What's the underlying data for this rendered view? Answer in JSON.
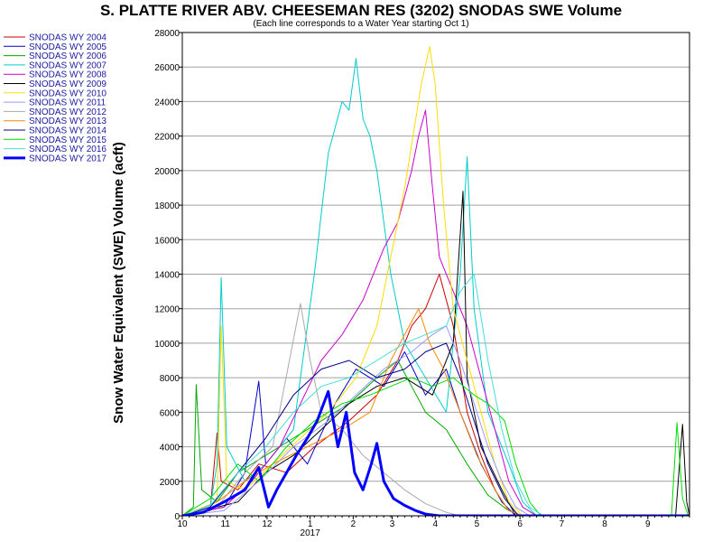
{
  "chart_data": {
    "type": "line",
    "title": "S. PLATTE RIVER ABV. CHEESEMAN RES (3202) SNODAS SWE Volume",
    "subtitle": "(Each line corresponds to a Water Year starting Oct 1)",
    "ylabel": "Snow Water Equivalent (SWE) Volume (acft)",
    "xlabel": "",
    "ylim": [
      0,
      28000
    ],
    "yticks": [
      0,
      2000,
      4000,
      6000,
      8000,
      10000,
      12000,
      14000,
      16000,
      18000,
      20000,
      22000,
      24000,
      26000,
      28000
    ],
    "xlim": [
      0,
      365
    ],
    "x_unit": "days since Oct 1",
    "xticks": [
      {
        "x": 0,
        "label": "10"
      },
      {
        "x": 31,
        "label": "11"
      },
      {
        "x": 61,
        "label": "12"
      },
      {
        "x": 92,
        "label": "1"
      },
      {
        "x": 123,
        "label": "2"
      },
      {
        "x": 151,
        "label": "3"
      },
      {
        "x": 182,
        "label": "4"
      },
      {
        "x": 212,
        "label": "5"
      },
      {
        "x": 243,
        "label": "6"
      },
      {
        "x": 273,
        "label": "7"
      },
      {
        "x": 304,
        "label": "8"
      },
      {
        "x": 335,
        "label": "9"
      }
    ],
    "year_label": {
      "x": 92,
      "label": "2017"
    },
    "grid": true,
    "legend_position": "left",
    "series": [
      {
        "name": "SNODAS WY 2004",
        "color": "#cc0000",
        "width": 1,
        "points": [
          [
            0,
            0
          ],
          [
            20,
            300
          ],
          [
            25,
            4800
          ],
          [
            28,
            2000
          ],
          [
            40,
            1500
          ],
          [
            55,
            3000
          ],
          [
            75,
            2500
          ],
          [
            95,
            4000
          ],
          [
            120,
            5500
          ],
          [
            140,
            7000
          ],
          [
            155,
            9000
          ],
          [
            165,
            11000
          ],
          [
            175,
            12000
          ],
          [
            185,
            14000
          ],
          [
            195,
            11000
          ],
          [
            205,
            6000
          ],
          [
            215,
            3500
          ],
          [
            225,
            1500
          ],
          [
            235,
            300
          ],
          [
            245,
            0
          ],
          [
            365,
            0
          ]
        ]
      },
      {
        "name": "SNODAS WY 2005",
        "color": "#0000cc",
        "width": 1,
        "points": [
          [
            0,
            0
          ],
          [
            30,
            500
          ],
          [
            45,
            2500
          ],
          [
            55,
            7800
          ],
          [
            60,
            3000
          ],
          [
            75,
            4500
          ],
          [
            90,
            3000
          ],
          [
            110,
            6500
          ],
          [
            125,
            8500
          ],
          [
            145,
            7500
          ],
          [
            160,
            9500
          ],
          [
            175,
            7000
          ],
          [
            190,
            8500
          ],
          [
            200,
            6000
          ],
          [
            215,
            3000
          ],
          [
            230,
            800
          ],
          [
            240,
            0
          ],
          [
            365,
            0
          ]
        ]
      },
      {
        "name": "SNODAS WY 2006",
        "color": "#00aa00",
        "width": 1,
        "points": [
          [
            0,
            0
          ],
          [
            8,
            500
          ],
          [
            10,
            7600
          ],
          [
            14,
            1500
          ],
          [
            25,
            800
          ],
          [
            40,
            2500
          ],
          [
            60,
            3500
          ],
          [
            80,
            4500
          ],
          [
            100,
            5500
          ],
          [
            120,
            6500
          ],
          [
            140,
            8000
          ],
          [
            155,
            9000
          ],
          [
            165,
            7500
          ],
          [
            175,
            6000
          ],
          [
            190,
            5000
          ],
          [
            205,
            3000
          ],
          [
            220,
            1200
          ],
          [
            235,
            300
          ],
          [
            245,
            0
          ],
          [
            365,
            0
          ]
        ]
      },
      {
        "name": "SNODAS WY 2007",
        "color": "#00cccc",
        "width": 1,
        "points": [
          [
            0,
            0
          ],
          [
            20,
            500
          ],
          [
            25,
            3000
          ],
          [
            28,
            13800
          ],
          [
            32,
            4000
          ],
          [
            45,
            2000
          ],
          [
            60,
            3000
          ],
          [
            80,
            5000
          ],
          [
            95,
            14000
          ],
          [
            105,
            21000
          ],
          [
            115,
            24000
          ],
          [
            120,
            23500
          ],
          [
            125,
            26500
          ],
          [
            130,
            23000
          ],
          [
            135,
            22000
          ],
          [
            140,
            20000
          ],
          [
            145,
            17000
          ],
          [
            150,
            14000
          ],
          [
            160,
            10000
          ],
          [
            175,
            8000
          ],
          [
            190,
            6000
          ],
          [
            200,
            14000
          ],
          [
            205,
            20800
          ],
          [
            210,
            12000
          ],
          [
            220,
            6000
          ],
          [
            235,
            3000
          ],
          [
            245,
            800
          ],
          [
            255,
            0
          ],
          [
            365,
            0
          ]
        ]
      },
      {
        "name": "SNODAS WY 2008",
        "color": "#cc00cc",
        "width": 1,
        "points": [
          [
            0,
            0
          ],
          [
            30,
            500
          ],
          [
            50,
            2000
          ],
          [
            70,
            4000
          ],
          [
            85,
            6500
          ],
          [
            100,
            9000
          ],
          [
            115,
            10500
          ],
          [
            130,
            12500
          ],
          [
            145,
            15500
          ],
          [
            155,
            17000
          ],
          [
            165,
            20000
          ],
          [
            170,
            22000
          ],
          [
            175,
            23500
          ],
          [
            180,
            19000
          ],
          [
            185,
            15000
          ],
          [
            195,
            13000
          ],
          [
            205,
            11000
          ],
          [
            215,
            8000
          ],
          [
            225,
            5000
          ],
          [
            235,
            2000
          ],
          [
            245,
            500
          ],
          [
            255,
            0
          ],
          [
            365,
            0
          ]
        ]
      },
      {
        "name": "SNODAS WY 2009",
        "color": "#000000",
        "width": 1,
        "points": [
          [
            0,
            0
          ],
          [
            40,
            800
          ],
          [
            60,
            2500
          ],
          [
            80,
            3500
          ],
          [
            100,
            5000
          ],
          [
            120,
            6500
          ],
          [
            140,
            7500
          ],
          [
            160,
            8000
          ],
          [
            180,
            7000
          ],
          [
            195,
            10000
          ],
          [
            202,
            18800
          ],
          [
            205,
            8000
          ],
          [
            215,
            4000
          ],
          [
            230,
            1500
          ],
          [
            240,
            0
          ],
          [
            355,
            0
          ],
          [
            360,
            5300
          ],
          [
            363,
            800
          ],
          [
            365,
            0
          ]
        ]
      },
      {
        "name": "SNODAS WY 2010",
        "color": "#ffdd00",
        "width": 1,
        "points": [
          [
            0,
            0
          ],
          [
            25,
            800
          ],
          [
            28,
            11000
          ],
          [
            32,
            2000
          ],
          [
            45,
            1500
          ],
          [
            65,
            3000
          ],
          [
            85,
            4500
          ],
          [
            105,
            6000
          ],
          [
            125,
            8000
          ],
          [
            140,
            11000
          ],
          [
            150,
            15000
          ],
          [
            160,
            19000
          ],
          [
            168,
            23000
          ],
          [
            172,
            25000
          ],
          [
            178,
            27200
          ],
          [
            182,
            25000
          ],
          [
            188,
            18000
          ],
          [
            195,
            12000
          ],
          [
            205,
            9000
          ],
          [
            215,
            6000
          ],
          [
            225,
            3000
          ],
          [
            235,
            800
          ],
          [
            245,
            0
          ],
          [
            365,
            0
          ]
        ]
      },
      {
        "name": "SNODAS WY 2011",
        "color": "#9999ff",
        "width": 1,
        "points": [
          [
            0,
            0
          ],
          [
            30,
            300
          ],
          [
            55,
            2000
          ],
          [
            80,
            4000
          ],
          [
            105,
            5500
          ],
          [
            125,
            7000
          ],
          [
            145,
            8500
          ],
          [
            165,
            9500
          ],
          [
            180,
            10500
          ],
          [
            190,
            11000
          ],
          [
            200,
            9000
          ],
          [
            210,
            6500
          ],
          [
            220,
            4000
          ],
          [
            230,
            2000
          ],
          [
            240,
            500
          ],
          [
            250,
            0
          ],
          [
            365,
            0
          ]
        ]
      },
      {
        "name": "SNODAS WY 2012",
        "color": "#aaaaaa",
        "width": 1,
        "points": [
          [
            0,
            0
          ],
          [
            25,
            500
          ],
          [
            45,
            2500
          ],
          [
            65,
            4000
          ],
          [
            85,
            12300
          ],
          [
            92,
            9000
          ],
          [
            100,
            6000
          ],
          [
            115,
            5000
          ],
          [
            130,
            3500
          ],
          [
            145,
            2500
          ],
          [
            160,
            1500
          ],
          [
            175,
            700
          ],
          [
            190,
            200
          ],
          [
            200,
            0
          ],
          [
            365,
            0
          ]
        ]
      },
      {
        "name": "SNODAS WY 2013",
        "color": "#ff8800",
        "width": 1,
        "points": [
          [
            0,
            0
          ],
          [
            25,
            800
          ],
          [
            45,
            2000
          ],
          [
            65,
            3000
          ],
          [
            90,
            4000
          ],
          [
            115,
            5000
          ],
          [
            135,
            6000
          ],
          [
            150,
            9000
          ],
          [
            160,
            10500
          ],
          [
            170,
            12000
          ],
          [
            178,
            10000
          ],
          [
            188,
            8500
          ],
          [
            200,
            6000
          ],
          [
            212,
            3500
          ],
          [
            225,
            1500
          ],
          [
            235,
            300
          ],
          [
            245,
            0
          ],
          [
            365,
            0
          ]
        ]
      },
      {
        "name": "SNODAS WY 2014",
        "color": "#000088",
        "width": 1,
        "points": [
          [
            0,
            0
          ],
          [
            20,
            500
          ],
          [
            40,
            2500
          ],
          [
            60,
            4500
          ],
          [
            80,
            7000
          ],
          [
            100,
            8500
          ],
          [
            120,
            9000
          ],
          [
            140,
            8000
          ],
          [
            160,
            8500
          ],
          [
            175,
            9500
          ],
          [
            190,
            10000
          ],
          [
            200,
            8000
          ],
          [
            210,
            5500
          ],
          [
            220,
            3000
          ],
          [
            232,
            1000
          ],
          [
            242,
            0
          ],
          [
            365,
            0
          ]
        ]
      },
      {
        "name": "SNODAS WY 2015",
        "color": "#00dd00",
        "width": 1,
        "points": [
          [
            0,
            0
          ],
          [
            20,
            1000
          ],
          [
            40,
            3000
          ],
          [
            55,
            2000
          ],
          [
            75,
            4000
          ],
          [
            95,
            5500
          ],
          [
            115,
            6500
          ],
          [
            135,
            7000
          ],
          [
            150,
            7500
          ],
          [
            165,
            8000
          ],
          [
            180,
            7500
          ],
          [
            195,
            8000
          ],
          [
            210,
            7000
          ],
          [
            220,
            6500
          ],
          [
            232,
            5500
          ],
          [
            240,
            3000
          ],
          [
            250,
            800
          ],
          [
            258,
            0
          ],
          [
            352,
            0
          ],
          [
            356,
            5400
          ],
          [
            360,
            1000
          ],
          [
            364,
            0
          ]
        ]
      },
      {
        "name": "SNODAS WY 2016",
        "color": "#44dddd",
        "width": 1,
        "points": [
          [
            0,
            0
          ],
          [
            20,
            600
          ],
          [
            40,
            2500
          ],
          [
            60,
            4000
          ],
          [
            80,
            6000
          ],
          [
            100,
            7500
          ],
          [
            120,
            8000
          ],
          [
            140,
            9000
          ],
          [
            160,
            10000
          ],
          [
            175,
            10500
          ],
          [
            190,
            11000
          ],
          [
            200,
            13000
          ],
          [
            210,
            14000
          ],
          [
            220,
            9000
          ],
          [
            230,
            5000
          ],
          [
            240,
            2000
          ],
          [
            250,
            500
          ],
          [
            260,
            0
          ],
          [
            365,
            0
          ]
        ]
      },
      {
        "name": "SNODAS WY 2017",
        "color": "#0000ff",
        "width": 3,
        "points": [
          [
            0,
            0
          ],
          [
            15,
            200
          ],
          [
            30,
            800
          ],
          [
            45,
            1500
          ],
          [
            55,
            2800
          ],
          [
            62,
            500
          ],
          [
            68,
            1500
          ],
          [
            75,
            2500
          ],
          [
            82,
            3500
          ],
          [
            90,
            4500
          ],
          [
            97,
            5500
          ],
          [
            105,
            7200
          ],
          [
            112,
            4000
          ],
          [
            118,
            6000
          ],
          [
            124,
            2500
          ],
          [
            130,
            1500
          ],
          [
            136,
            3000
          ],
          [
            140,
            4200
          ],
          [
            145,
            2000
          ],
          [
            152,
            1000
          ],
          [
            160,
            600
          ],
          [
            168,
            300
          ],
          [
            175,
            100
          ],
          [
            185,
            0
          ],
          [
            365,
            0
          ]
        ]
      }
    ]
  }
}
